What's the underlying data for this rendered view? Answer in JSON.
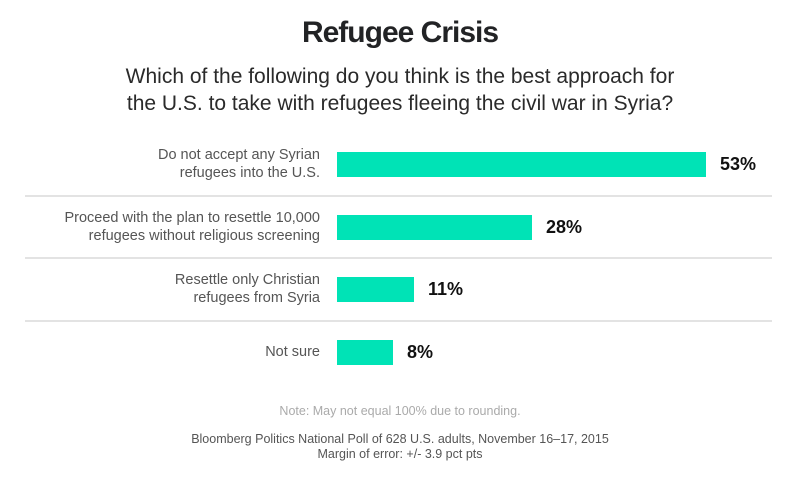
{
  "chart_data": {
    "type": "bar",
    "orientation": "horizontal",
    "title": "Refugee Crisis",
    "subtitle": [
      "Which of the following do you think is the best approach for",
      "the U.S. to take with refugees fleeing the civil war in Syria?"
    ],
    "categories": [
      [
        "Do not accept any Syrian",
        "refugees into the U.S."
      ],
      [
        "Proceed with the plan to resettle 10,000",
        "refugees without religious screening"
      ],
      [
        "Resettle only Christian",
        "refugees from Syria"
      ],
      [
        "Not sure"
      ]
    ],
    "values": [
      53,
      28,
      11,
      8
    ],
    "value_labels": [
      "53%",
      "28%",
      "11%",
      "8%"
    ],
    "unit": "%",
    "xlim": [
      0,
      53
    ],
    "grid": false,
    "bar_color": "#00e3b6",
    "note": "Note: May not equal 100% due to rounding.",
    "source": [
      "Bloomberg Politics National Poll of 628 U.S. adults, November 16–17, 2015",
      "Margin of error: +/- 3.9 pct pts"
    ]
  }
}
